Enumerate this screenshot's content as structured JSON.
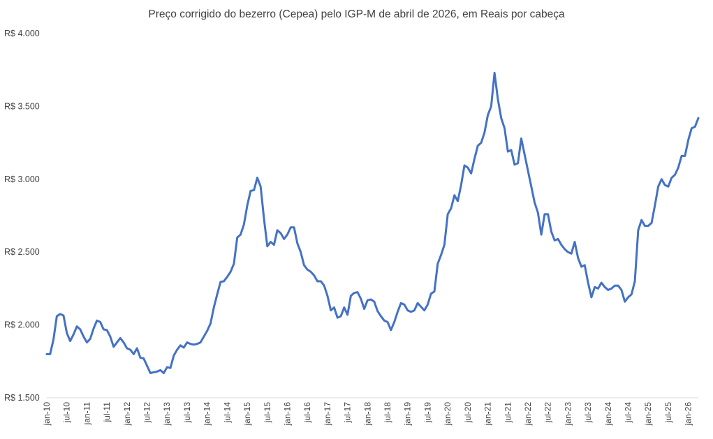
{
  "chart_data": {
    "type": "line",
    "title": "Preço corrigido do bezerro (Cepea) pelo IGP-M de abril  de 2026, em Reais por cabeça",
    "xlabel": "",
    "ylabel": "",
    "ylim": [
      1500,
      4000
    ],
    "y_ticks": [
      1500,
      2000,
      2500,
      3000,
      3500,
      4000
    ],
    "y_tick_labels": [
      "R$ 1.500",
      "R$ 2.000",
      "R$ 2.500",
      "R$ 3.000",
      "R$ 3.500",
      "R$ 4.000"
    ],
    "x_tick_labels": [
      "jan-10",
      "jul-10",
      "jan-11",
      "jul-11",
      "jan-12",
      "jul-12",
      "jan-13",
      "jul-13",
      "jan-14",
      "jul-14",
      "jan-15",
      "jul-15",
      "jan-16",
      "jul-16",
      "jan-17",
      "jul-17",
      "jan-18",
      "jul-18",
      "jan-19",
      "jul-19",
      "jan-20",
      "jul-20",
      "jan-21",
      "jul-21",
      "jan-22",
      "jul-22",
      "jan-23",
      "jul-23",
      "jan-24",
      "jul-24",
      "jan-25",
      "jul-25",
      "jan-26"
    ],
    "grid": false,
    "legend": "none",
    "line_color": "#4472C4",
    "series": [
      {
        "start": "jan-10",
        "frequency": "monthly",
        "values": [
          1800,
          1800,
          1900,
          2060,
          2075,
          2065,
          1945,
          1890,
          1935,
          1990,
          1970,
          1920,
          1880,
          1905,
          1975,
          2030,
          2020,
          1970,
          1965,
          1920,
          1850,
          1880,
          1910,
          1880,
          1840,
          1830,
          1800,
          1840,
          1775,
          1770,
          1720,
          1670,
          1675,
          1680,
          1690,
          1670,
          1710,
          1705,
          1790,
          1830,
          1860,
          1845,
          1880,
          1870,
          1865,
          1870,
          1880,
          1920,
          1960,
          2010,
          2120,
          2210,
          2295,
          2300,
          2330,
          2365,
          2420,
          2600,
          2620,
          2690,
          2820,
          2920,
          2925,
          3010,
          2950,
          2730,
          2540,
          2570,
          2550,
          2650,
          2630,
          2590,
          2620,
          2670,
          2670,
          2560,
          2500,
          2410,
          2380,
          2365,
          2340,
          2300,
          2300,
          2270,
          2200,
          2100,
          2120,
          2050,
          2060,
          2120,
          2070,
          2200,
          2220,
          2225,
          2180,
          2110,
          2170,
          2175,
          2160,
          2095,
          2060,
          2030,
          2020,
          1965,
          2020,
          2090,
          2150,
          2140,
          2100,
          2090,
          2100,
          2150,
          2125,
          2100,
          2140,
          2215,
          2230,
          2420,
          2480,
          2550,
          2760,
          2800,
          2890,
          2850,
          2960,
          3095,
          3080,
          3040,
          3140,
          3230,
          3250,
          3320,
          3440,
          3500,
          3730,
          3550,
          3420,
          3350,
          3190,
          3200,
          3100,
          3110,
          3280,
          3170,
          3060,
          2950,
          2840,
          2770,
          2620,
          2760,
          2760,
          2640,
          2580,
          2590,
          2550,
          2520,
          2500,
          2490,
          2570,
          2460,
          2400,
          2410,
          2290,
          2190,
          2260,
          2250,
          2290,
          2260,
          2240,
          2250,
          2270,
          2270,
          2240,
          2160,
          2190,
          2210,
          2300,
          2650,
          2720,
          2680,
          2680,
          2700,
          2820,
          2950,
          3000,
          2960,
          2950,
          3010,
          3030,
          3080,
          3160,
          3160,
          3270,
          3350,
          3360,
          3420
        ]
      }
    ]
  }
}
